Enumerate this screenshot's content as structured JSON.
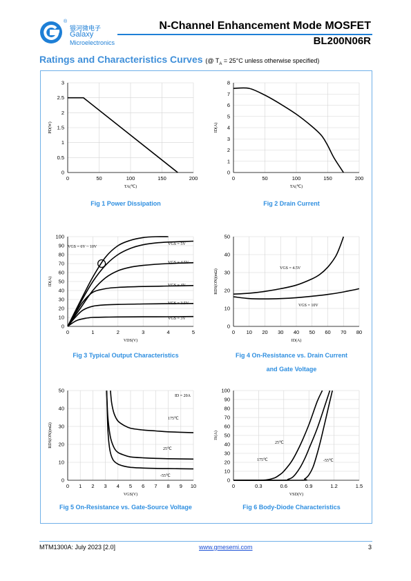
{
  "header": {
    "logo_cn": "银河微电子",
    "logo_en1": "Galaxy",
    "logo_en2": "Microelectronics",
    "logo_registered": "®",
    "doc_title": "N-Channel Enhancement Mode MOSFET",
    "part_number": "BL200N06R"
  },
  "section": {
    "title": "Ratings and Characteristics Curves",
    "subtitle": "(@ T",
    "subtitle_sub": "A",
    "subtitle_rest": " = 25°C unless otherwise specified)"
  },
  "footer": {
    "doc_code": "MTM1300A: July 2023 [2.0]",
    "website": "www.gmesemi.com",
    "page": "3"
  },
  "colors": {
    "brand": "#1e7fd6",
    "caption": "#2f8fe0",
    "frame": "#6fb0e8"
  },
  "chart_data": [
    {
      "id": "fig1",
      "caption": "Fig 1    Power Dissipation",
      "type": "line",
      "xlabel": "TA(℃)",
      "ylabel": "PD(W)",
      "xlim": [
        0,
        200
      ],
      "ylim": [
        0,
        3
      ],
      "xticks": [
        "0",
        "50",
        "100",
        "150",
        "200"
      ],
      "yticks": [
        "0",
        "0.5",
        "1",
        "1.5",
        "2",
        "2.5",
        "3"
      ],
      "series": [
        {
          "x": [
            0,
            25,
            175
          ],
          "y": [
            2.5,
            2.5,
            0
          ]
        }
      ]
    },
    {
      "id": "fig2",
      "caption": "Fig 2    Drain Current",
      "type": "line",
      "xlabel": "TA(℃)",
      "ylabel": "ID(A)",
      "xlim": [
        0,
        200
      ],
      "ylim": [
        0,
        8
      ],
      "xticks": [
        "0",
        "50",
        "100",
        "150",
        "200"
      ],
      "yticks": [
        "0",
        "1",
        "2",
        "3",
        "4",
        "5",
        "6",
        "7",
        "8"
      ],
      "series": [
        {
          "x": [
            0,
            25,
            50,
            75,
            100,
            125,
            140,
            150,
            160,
            175
          ],
          "y": [
            7.5,
            7.5,
            6.9,
            6.1,
            5.2,
            4.1,
            3.3,
            2.4,
            1.3,
            0
          ]
        }
      ]
    },
    {
      "id": "fig3",
      "caption": "Fig 3    Typical Output Characteristics",
      "type": "line",
      "xlabel": "VDS(V)",
      "ylabel": "ID(A)",
      "xlim": [
        0,
        5
      ],
      "ylim": [
        0,
        100
      ],
      "xticks": [
        "0",
        "1",
        "2",
        "3",
        "4",
        "5"
      ],
      "yticks": [
        "0",
        "10",
        "20",
        "30",
        "40",
        "50",
        "60",
        "70",
        "80",
        "90",
        "100"
      ],
      "series": [
        {
          "name": "VGS = 6V ~ 10V",
          "x": [
            0,
            0.5,
            1,
            1.5,
            2,
            2.5,
            3,
            3.5,
            4
          ],
          "y": [
            0,
            28,
            55,
            77,
            90,
            96,
            99,
            100,
            100
          ]
        },
        {
          "name": "VGS = 5V",
          "x": [
            0,
            0.5,
            1,
            1.5,
            2,
            2.5,
            3,
            3.5,
            4,
            5
          ],
          "y": [
            0,
            26,
            50,
            68,
            80,
            87,
            91,
            93,
            94,
            95
          ]
        },
        {
          "name": "VGS = 4.5V",
          "x": [
            0,
            0.5,
            1,
            1.5,
            2,
            2.5,
            3,
            4,
            5
          ],
          "y": [
            0,
            20,
            40,
            54,
            62,
            66,
            68,
            70,
            71
          ]
        },
        {
          "name": "VGS = 4V",
          "x": [
            0,
            0.3,
            0.6,
            1,
            1.5,
            2,
            3,
            4,
            5
          ],
          "y": [
            0,
            14,
            27,
            38,
            42,
            43.5,
            44.5,
            45,
            45.5
          ]
        },
        {
          "name": "VGS = 3.5V",
          "x": [
            0,
            0.3,
            0.6,
            1,
            1.5,
            2,
            3,
            4,
            5
          ],
          "y": [
            0,
            10,
            18,
            22.5,
            24,
            24.5,
            25,
            25.3,
            25.5
          ]
        },
        {
          "name": "VGS = 3V",
          "x": [
            0,
            0.2,
            0.4,
            0.7,
            1,
            1.5,
            2,
            3,
            4,
            5
          ],
          "y": [
            0,
            4,
            7,
            9,
            10,
            10.3,
            10.5,
            10.7,
            10.8,
            11
          ]
        }
      ]
    },
    {
      "id": "fig4",
      "caption": "Fig 4    On-Resistance vs. Drain Current",
      "caption2": "and Gate Voltage",
      "type": "line",
      "xlabel": "ID(A)",
      "ylabel": "RDS(ON)(mΩ)",
      "xlim": [
        0,
        80
      ],
      "ylim": [
        0,
        50
      ],
      "xticks": [
        "0",
        "10",
        "20",
        "30",
        "40",
        "50",
        "60",
        "70",
        "80"
      ],
      "yticks": [
        "0",
        "10",
        "20",
        "30",
        "40",
        "50"
      ],
      "series": [
        {
          "name": "VGS = 4.5V",
          "x": [
            0,
            10,
            20,
            30,
            40,
            50,
            55,
            60,
            65,
            68,
            70
          ],
          "y": [
            18,
            18.5,
            19.5,
            21,
            23,
            26.5,
            29,
            33,
            39,
            45,
            50
          ]
        },
        {
          "name": "VGS = 10V",
          "x": [
            0,
            10,
            20,
            30,
            40,
            50,
            60,
            70,
            80
          ],
          "y": [
            16.5,
            15.5,
            15.3,
            15.5,
            16,
            16.8,
            17.8,
            19.2,
            21
          ]
        }
      ]
    },
    {
      "id": "fig5",
      "caption": "Fig 5    On-Resistance vs. Gate-Source Voltage",
      "annotation": "ID = 20A",
      "type": "line",
      "xlabel": "VGS(V)",
      "ylabel": "RDS(ON)(mΩ)",
      "xlim": [
        0,
        10
      ],
      "ylim": [
        0,
        50
      ],
      "xticks": [
        "0",
        "1",
        "2",
        "3",
        "4",
        "5",
        "6",
        "7",
        "8",
        "9",
        "10"
      ],
      "yticks": [
        "0",
        "10",
        "20",
        "30",
        "40",
        "50"
      ],
      "series": [
        {
          "name": "175℃",
          "x": [
            3.4,
            3.5,
            3.7,
            4,
            4.5,
            5,
            6,
            7,
            8,
            10
          ],
          "y": [
            50,
            43,
            37,
            33,
            30.5,
            29,
            28,
            27.5,
            27,
            26.5
          ]
        },
        {
          "name": "25℃",
          "x": [
            3.1,
            3.2,
            3.4,
            3.7,
            4,
            4.5,
            5,
            6,
            7,
            8,
            10
          ],
          "y": [
            50,
            35,
            24,
            18,
            15.5,
            14,
            13,
            12.5,
            12.2,
            12,
            11.8
          ]
        },
        {
          "name": "-55℃",
          "x": [
            3.1,
            3.2,
            3.35,
            3.6,
            4,
            4.5,
            5,
            6,
            7,
            8,
            10
          ],
          "y": [
            50,
            28,
            17,
            11.5,
            9,
            7.8,
            7.2,
            6.8,
            6.6,
            6.5,
            6.3
          ]
        }
      ]
    },
    {
      "id": "fig6",
      "caption": "Fig 6    Body-Diode Characteristics",
      "type": "line",
      "xlabel": "VSD(V)",
      "ylabel": "IS(A)",
      "xlim": [
        0,
        1.5
      ],
      "ylim": [
        0,
        100
      ],
      "xticks": [
        "0",
        "0.3",
        "0.6",
        "0.9",
        "1.2",
        "1.5"
      ],
      "yticks": [
        "0",
        "10",
        "20",
        "30",
        "40",
        "50",
        "60",
        "70",
        "80",
        "90",
        "100"
      ],
      "series": [
        {
          "name": "175℃",
          "x": [
            0,
            0.3,
            0.4,
            0.45,
            0.5,
            0.55,
            0.6,
            0.7,
            0.8,
            0.9,
            1.0,
            1.06
          ],
          "y": [
            0,
            0,
            0.5,
            1.5,
            3,
            6,
            10,
            22,
            40,
            62,
            88,
            100
          ]
        },
        {
          "name": "25℃",
          "x": [
            0,
            0.6,
            0.65,
            0.7,
            0.75,
            0.8,
            0.85,
            0.9,
            1.0,
            1.1,
            1.15
          ],
          "y": [
            0,
            0,
            1,
            3,
            8,
            15,
            24,
            35,
            58,
            86,
            100
          ]
        },
        {
          "name": "-55℃",
          "x": [
            0,
            0.8,
            0.85,
            0.9,
            0.95,
            1.0,
            1.05,
            1.1,
            1.15,
            1.18
          ],
          "y": [
            0,
            0,
            1.5,
            6,
            15,
            30,
            48,
            68,
            88,
            100
          ]
        }
      ]
    }
  ]
}
